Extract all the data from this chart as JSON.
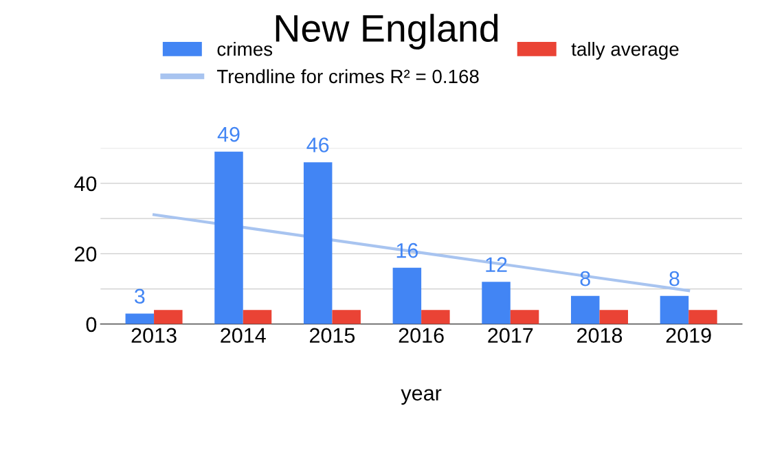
{
  "chart_data": {
    "type": "bar",
    "title": "New England",
    "xlabel": "year",
    "categories": [
      "2013",
      "2014",
      "2015",
      "2016",
      "2017",
      "2018",
      "2019"
    ],
    "series": [
      {
        "name": "crimes",
        "color": "#4285f4",
        "values": [
          3,
          49,
          46,
          16,
          12,
          8,
          8
        ],
        "value_labels": [
          "3",
          "49",
          "46",
          "16",
          "12",
          "8",
          "8"
        ]
      },
      {
        "name": "Trendline for crimes R² = 0.168",
        "type": "line",
        "color": "#a8c4f0",
        "values": [
          31.1,
          27.5,
          23.9,
          20.3,
          16.7,
          13.1,
          9.5
        ]
      },
      {
        "name": "tally average",
        "color": "#ea4335",
        "values": [
          4,
          4,
          4,
          4,
          4,
          4,
          4
        ]
      }
    ],
    "ylim": [
      0,
      50
    ],
    "yticks": [
      0,
      {
        "value": 10,
        "label": null
      },
      20,
      {
        "value": 30,
        "label": null
      },
      40,
      {
        "value": 50,
        "label": null
      }
    ],
    "grid": "y",
    "legend": "top"
  }
}
